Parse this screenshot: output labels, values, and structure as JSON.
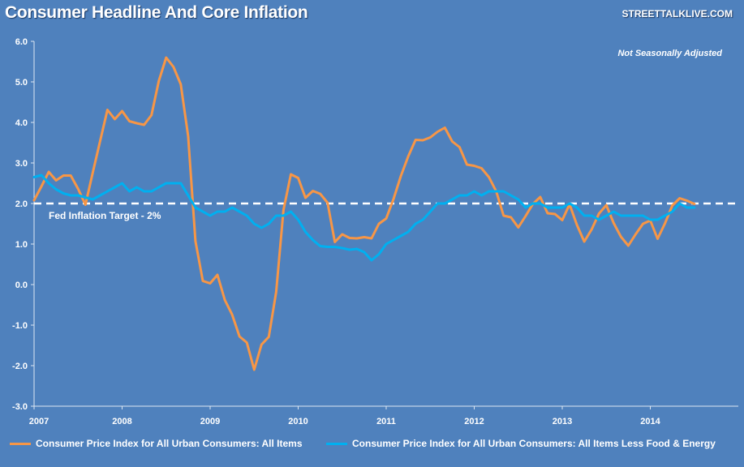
{
  "title": "Consumer Headline And Core Inflation",
  "brand": "STREETTALKLIVE.COM",
  "annotation": "Not Seasonally Adjusted",
  "target_label": "Fed Inflation Target - 2%",
  "colors": {
    "background": "#4f81bd",
    "headline": "#f79646",
    "core": "#00b0f0",
    "target_line": "#ffffff"
  },
  "chart_data": {
    "type": "line",
    "xlabel": "",
    "ylabel": "",
    "x_ticks": [
      "2007",
      "2008",
      "2009",
      "2010",
      "2011",
      "2012",
      "2013",
      "2014"
    ],
    "ylim": [
      -3.0,
      6.0
    ],
    "y_ticks": [
      "6.0",
      "5.0",
      "4.0",
      "3.0",
      "2.0",
      "1.0",
      "0.0",
      "-1.0",
      "-2.0",
      "-3.0"
    ],
    "grid": false,
    "legend_position": "bottom",
    "target_value": 2.0,
    "x": [
      "2007-01",
      "2007-02",
      "2007-03",
      "2007-04",
      "2007-05",
      "2007-06",
      "2007-07",
      "2007-08",
      "2007-09",
      "2007-10",
      "2007-11",
      "2007-12",
      "2008-01",
      "2008-02",
      "2008-03",
      "2008-04",
      "2008-05",
      "2008-06",
      "2008-07",
      "2008-08",
      "2008-09",
      "2008-10",
      "2008-11",
      "2008-12",
      "2009-01",
      "2009-02",
      "2009-03",
      "2009-04",
      "2009-05",
      "2009-06",
      "2009-07",
      "2009-08",
      "2009-09",
      "2009-10",
      "2009-11",
      "2009-12",
      "2010-01",
      "2010-02",
      "2010-03",
      "2010-04",
      "2010-05",
      "2010-06",
      "2010-07",
      "2010-08",
      "2010-09",
      "2010-10",
      "2010-11",
      "2010-12",
      "2011-01",
      "2011-02",
      "2011-03",
      "2011-04",
      "2011-05",
      "2011-06",
      "2011-07",
      "2011-08",
      "2011-09",
      "2011-10",
      "2011-11",
      "2011-12",
      "2012-01",
      "2012-02",
      "2012-03",
      "2012-04",
      "2012-05",
      "2012-06",
      "2012-07",
      "2012-08",
      "2012-09",
      "2012-10",
      "2012-11",
      "2012-12",
      "2013-01",
      "2013-02",
      "2013-03",
      "2013-04",
      "2013-05",
      "2013-06",
      "2013-07",
      "2013-08",
      "2013-09",
      "2013-10",
      "2013-11",
      "2013-12",
      "2014-01",
      "2014-02",
      "2014-03",
      "2014-04",
      "2014-05",
      "2014-06",
      "2014-07"
    ],
    "series": [
      {
        "name": "Consumer Price Index for All Urban Consumers: All Items",
        "color": "#f79646",
        "values": [
          2.08,
          2.42,
          2.78,
          2.57,
          2.69,
          2.69,
          2.36,
          1.97,
          2.76,
          3.54,
          4.31,
          4.08,
          4.28,
          4.03,
          3.98,
          3.94,
          4.18,
          5.02,
          5.6,
          5.37,
          4.94,
          3.66,
          1.07,
          0.09,
          0.03,
          0.24,
          -0.38,
          -0.74,
          -1.28,
          -1.43,
          -2.1,
          -1.48,
          -1.29,
          -0.18,
          1.84,
          2.72,
          2.63,
          2.14,
          2.31,
          2.24,
          2.02,
          1.05,
          1.24,
          1.15,
          1.14,
          1.17,
          1.14,
          1.5,
          1.63,
          2.11,
          2.68,
          3.16,
          3.57,
          3.56,
          3.63,
          3.77,
          3.87,
          3.53,
          3.39,
          2.96,
          2.93,
          2.87,
          2.65,
          2.3,
          1.7,
          1.66,
          1.41,
          1.69,
          1.99,
          2.16,
          1.76,
          1.74,
          1.59,
          1.98,
          1.47,
          1.06,
          1.36,
          1.75,
          1.96,
          1.52,
          1.18,
          0.96,
          1.24,
          1.5,
          1.58,
          1.13,
          1.51,
          1.95,
          2.13,
          2.07,
          1.99
        ]
      },
      {
        "name": "Consumer Price Index for All Urban Consumers: All Items Less Food & Energy",
        "color": "#00b0f0",
        "values": [
          2.65,
          2.7,
          2.5,
          2.35,
          2.25,
          2.2,
          2.2,
          2.15,
          2.1,
          2.2,
          2.3,
          2.4,
          2.5,
          2.3,
          2.4,
          2.3,
          2.3,
          2.4,
          2.5,
          2.5,
          2.5,
          2.2,
          1.9,
          1.8,
          1.7,
          1.8,
          1.8,
          1.9,
          1.8,
          1.7,
          1.5,
          1.4,
          1.5,
          1.7,
          1.7,
          1.8,
          1.6,
          1.3,
          1.1,
          0.95,
          0.93,
          0.93,
          0.9,
          0.86,
          0.88,
          0.8,
          0.6,
          0.75,
          1.0,
          1.1,
          1.2,
          1.3,
          1.5,
          1.6,
          1.8,
          2.0,
          2.0,
          2.1,
          2.2,
          2.2,
          2.3,
          2.2,
          2.3,
          2.3,
          2.3,
          2.2,
          2.1,
          1.9,
          2.0,
          2.0,
          1.9,
          1.9,
          1.9,
          2.0,
          1.9,
          1.7,
          1.7,
          1.6,
          1.7,
          1.8,
          1.7,
          1.7,
          1.7,
          1.7,
          1.6,
          1.6,
          1.7,
          1.8,
          2.0,
          1.9,
          1.9
        ]
      }
    ]
  }
}
